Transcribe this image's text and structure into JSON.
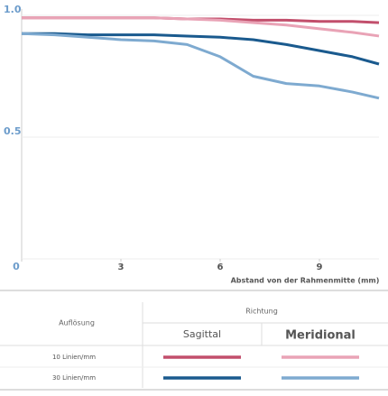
{
  "chart_data": {
    "type": "line",
    "x": [
      0,
      1,
      2,
      3,
      4,
      5,
      6,
      7,
      8,
      9,
      10,
      10.8
    ],
    "xlim": [
      0,
      10.8
    ],
    "xticks": [
      0,
      3,
      6,
      9
    ],
    "ylim": [
      0,
      1
    ],
    "yticks": [
      0,
      0.5,
      {
        "value": 1,
        "label": "1.0"
      }
    ],
    "x_label": "Abstand von der Rahmenmitte (mm)",
    "grid": true,
    "series": [
      {
        "color": "#c24f6c",
        "values": [
          0.99,
          0.99,
          0.99,
          0.99,
          0.99,
          0.985,
          0.985,
          0.98,
          0.98,
          0.975,
          0.975,
          0.97
        ]
      },
      {
        "color": "#e9a3b6",
        "values": [
          0.99,
          0.99,
          0.99,
          0.99,
          0.99,
          0.985,
          0.98,
          0.97,
          0.96,
          0.945,
          0.93,
          0.915
        ]
      },
      {
        "color": "#1a5a8e",
        "values": [
          0.925,
          0.925,
          0.92,
          0.92,
          0.92,
          0.915,
          0.91,
          0.9,
          0.88,
          0.855,
          0.83,
          0.8
        ]
      },
      {
        "color": "#7eaad0",
        "values": [
          0.925,
          0.92,
          0.91,
          0.9,
          0.895,
          0.88,
          0.83,
          0.75,
          0.72,
          0.71,
          0.685,
          0.66
        ]
      }
    ],
    "legend_table": {
      "row_header": "Auflösung",
      "column_header": "Richtung",
      "columns": [
        "Sagittal",
        "Meridional"
      ],
      "rows": [
        "10 Linien/mm",
        "30 Linien/mm"
      ]
    }
  }
}
